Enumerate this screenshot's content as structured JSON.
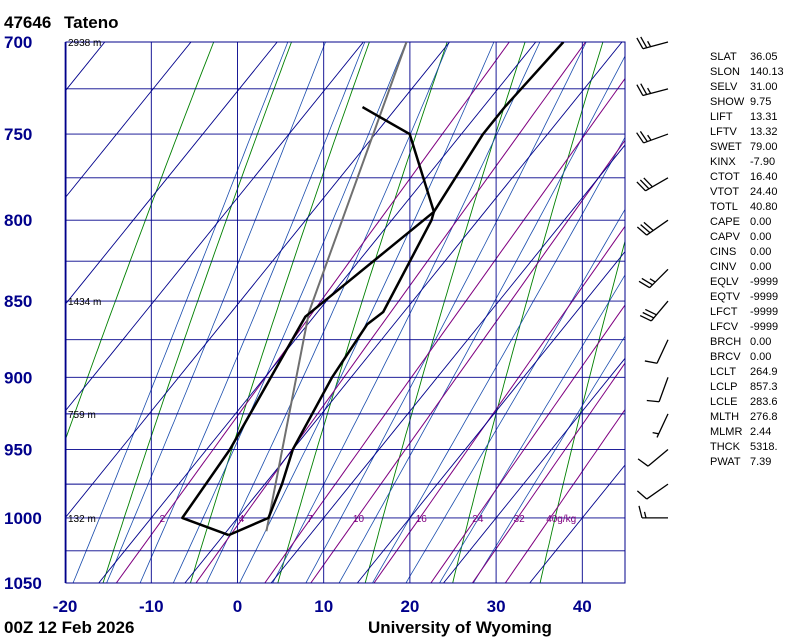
{
  "station": {
    "id": "47646",
    "name": "Tateno"
  },
  "footer": {
    "time": "00Z 12 Feb 2026",
    "source": "University of Wyoming"
  },
  "chart_data": {
    "type": "skew-t log-p",
    "pressure_axis": {
      "top": 700,
      "bottom": 1050,
      "scale": "log",
      "ticks": [
        700,
        750,
        800,
        850,
        900,
        950,
        1000,
        1050
      ]
    },
    "temperature_axis": {
      "min": -20,
      "max": 45,
      "ticks": [
        -20,
        -10,
        0,
        10,
        20,
        30,
        40
      ]
    },
    "isobar_lines": [
      725,
      775,
      825,
      875,
      925,
      975,
      1025
    ],
    "heights": [
      {
        "p": 700,
        "label": "2938 m"
      },
      {
        "p": 850,
        "label": "1434 m"
      },
      {
        "p": 925,
        "label": "759 m"
      },
      {
        "p": 1000,
        "label": "132 m"
      }
    ],
    "mixing_ratio_labels": [
      "2",
      "4",
      "7",
      "10",
      "16",
      "24",
      "32",
      "40g/kg"
    ],
    "mixing_ratio_values": [
      2,
      4,
      7,
      10,
      16,
      24,
      32,
      40
    ],
    "temperature_profile": [
      {
        "p": 1013,
        "t": 0.6
      },
      {
        "p": 1000,
        "t": 3.6
      },
      {
        "p": 975,
        "t": 2.0
      },
      {
        "p": 950,
        "t": 0.0
      },
      {
        "p": 900,
        "t": -2.2
      },
      {
        "p": 865,
        "t": -3.1
      },
      {
        "p": 857,
        "t": -2.4
      },
      {
        "p": 800,
        "t": -5.4
      },
      {
        "p": 795,
        "t": -5.9
      },
      {
        "p": 750,
        "t": -7.5
      },
      {
        "p": 735,
        "t": -7.5
      },
      {
        "p": 700,
        "t": -6.8
      }
    ],
    "dewpoint_profile": [
      {
        "p": 1013,
        "t": 0.6
      },
      {
        "p": 1000,
        "t": -6.4
      },
      {
        "p": 950,
        "t": -7.3
      },
      {
        "p": 900,
        "t": -9.3
      },
      {
        "p": 860,
        "t": -11.0
      },
      {
        "p": 795,
        "t": -5.9
      },
      {
        "p": 750,
        "t": -16.0
      },
      {
        "p": 735,
        "t": -24.0
      }
    ],
    "parcel_profile": [
      {
        "p": 1010,
        "t": 4.6
      },
      {
        "p": 857,
        "t": -11.0
      },
      {
        "p": 700,
        "t": -25.0
      }
    ],
    "wind_barbs": [
      {
        "p": 1000,
        "dir": 270,
        "kts": 15
      },
      {
        "p": 975,
        "dir": 235,
        "kts": 10
      },
      {
        "p": 950,
        "dir": 230,
        "kts": 12
      },
      {
        "p": 925,
        "dir": 205,
        "kts": 6
      },
      {
        "p": 900,
        "dir": 200,
        "kts": 8
      },
      {
        "p": 875,
        "dir": 205,
        "kts": 11
      },
      {
        "p": 850,
        "dir": 220,
        "kts": 28
      },
      {
        "p": 830,
        "dir": 225,
        "kts": 25
      },
      {
        "p": 800,
        "dir": 235,
        "kts": 28
      },
      {
        "p": 775,
        "dir": 240,
        "kts": 28
      },
      {
        "p": 750,
        "dir": 250,
        "kts": 25
      },
      {
        "p": 725,
        "dir": 255,
        "kts": 25
      },
      {
        "p": 700,
        "dir": 255,
        "kts": 25
      }
    ]
  },
  "indices": [
    {
      "key": "SLAT",
      "value": "36.05"
    },
    {
      "key": "SLON",
      "value": "140.13"
    },
    {
      "key": "SELV",
      "value": "31.00"
    },
    {
      "key": "SHOW",
      "value": "9.75"
    },
    {
      "key": "LIFT",
      "value": "13.31"
    },
    {
      "key": "LFTV",
      "value": "13.32"
    },
    {
      "key": "SWET",
      "value": "79.00"
    },
    {
      "key": "KINX",
      "value": "-7.90"
    },
    {
      "key": "CTOT",
      "value": "16.40"
    },
    {
      "key": "VTOT",
      "value": "24.40"
    },
    {
      "key": "TOTL",
      "value": "40.80"
    },
    {
      "key": "CAPE",
      "value": "0.00"
    },
    {
      "key": "CAPV",
      "value": "0.00"
    },
    {
      "key": "CINS",
      "value": "0.00"
    },
    {
      "key": "CINV",
      "value": "0.00"
    },
    {
      "key": "EQLV",
      "value": "-9999"
    },
    {
      "key": "EQTV",
      "value": "-9999"
    },
    {
      "key": "LFCT",
      "value": "-9999"
    },
    {
      "key": "LFCV",
      "value": "-9999"
    },
    {
      "key": "BRCH",
      "value": "0.00"
    },
    {
      "key": "BRCV",
      "value": "0.00"
    },
    {
      "key": "LCLT",
      "value": "264.9"
    },
    {
      "key": "LCLP",
      "value": "857.3"
    },
    {
      "key": "LCLE",
      "value": "283.6"
    },
    {
      "key": "MLTH",
      "value": "276.8"
    },
    {
      "key": "MLMR",
      "value": "2.44"
    },
    {
      "key": "THCK",
      "value": "5318."
    },
    {
      "key": "PWAT",
      "value": "7.39"
    }
  ],
  "colors": {
    "grid": "#00008b",
    "isotherm": "#00008b",
    "dry_adiabat": "#008000",
    "moist_adiabat": "#1a4dad",
    "mixing_ratio": "#800080",
    "sounding": "#000000",
    "parcel": "#707070"
  }
}
